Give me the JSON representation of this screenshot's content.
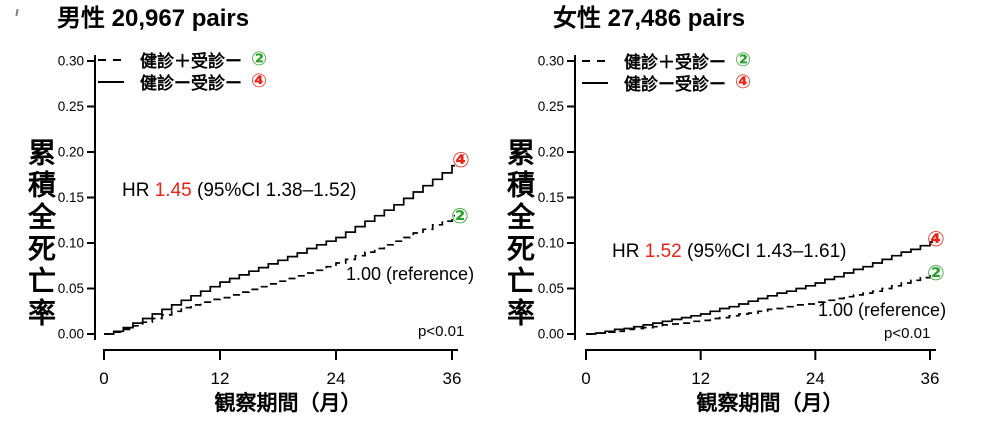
{
  "colors": {
    "red": "#e8231a",
    "green": "#2fa12f",
    "curve": "#000000"
  },
  "panels": [
    {
      "title": "男性 20,967 pairs",
      "ylabel": "累積全死亡率",
      "xlabel": "観察期間（月）",
      "legend": {
        "items": [
          {
            "label": "健診＋受診ー",
            "symbol": "②"
          },
          {
            "label": "健診ー受診ー",
            "symbol": "④"
          }
        ]
      },
      "hr": {
        "prefix": "HR ",
        "value": "1.45",
        "ci": " (95%CI 1.38–1.52)"
      },
      "reference": "1.00 (reference)",
      "p_value": "p<0.01",
      "markers": {
        "solid_end": "④",
        "dashed_end": "②"
      }
    },
    {
      "title": "女性 27,486 pairs",
      "ylabel": "累積全死亡率",
      "xlabel": "観察期間（月）",
      "legend": {
        "items": [
          {
            "label": "健診＋受診ー",
            "symbol": "②"
          },
          {
            "label": "健診ー受診ー",
            "symbol": "④"
          }
        ]
      },
      "hr": {
        "prefix": "HR ",
        "value": "1.52",
        "ci": " (95%CI 1.43–1.61)"
      },
      "reference": "1.00 (reference)",
      "p_value": "p<0.01",
      "markers": {
        "solid_end": "④",
        "dashed_end": "②"
      }
    }
  ],
  "chart_data": [
    {
      "type": "line",
      "step": true,
      "title": "男性 20,967 pairs",
      "xlabel": "観察期間（月）",
      "ylabel": "累積全死亡率",
      "xlim": [
        0,
        36
      ],
      "ylim": [
        0,
        0.3
      ],
      "xticks": [
        0,
        12,
        24,
        36
      ],
      "yticks": [
        0,
        0.05,
        0.1,
        0.15,
        0.2,
        0.25,
        0.3
      ],
      "x": [
        0,
        1,
        2,
        3,
        4,
        5,
        6,
        7,
        8,
        9,
        10,
        11,
        12,
        13,
        14,
        15,
        16,
        17,
        18,
        19,
        20,
        21,
        22,
        23,
        24,
        25,
        26,
        27,
        28,
        29,
        30,
        31,
        32,
        33,
        34,
        35,
        36
      ],
      "series": [
        {
          "name": "健診＋受診ー ②",
          "style": "dashed",
          "color": "#000000",
          "end_label": "②",
          "values": [
            0,
            0.002,
            0.005,
            0.009,
            0.013,
            0.017,
            0.021,
            0.025,
            0.029,
            0.032,
            0.035,
            0.038,
            0.04,
            0.043,
            0.046,
            0.049,
            0.052,
            0.055,
            0.058,
            0.061,
            0.064,
            0.067,
            0.07,
            0.074,
            0.078,
            0.082,
            0.086,
            0.09,
            0.094,
            0.098,
            0.102,
            0.106,
            0.111,
            0.115,
            0.12,
            0.124,
            0.13
          ]
        },
        {
          "name": "健診ー受診ー ④",
          "style": "solid",
          "color": "#000000",
          "end_label": "④",
          "values": [
            0,
            0.003,
            0.007,
            0.012,
            0.017,
            0.022,
            0.027,
            0.032,
            0.037,
            0.042,
            0.047,
            0.052,
            0.057,
            0.061,
            0.065,
            0.069,
            0.073,
            0.077,
            0.081,
            0.085,
            0.089,
            0.094,
            0.098,
            0.102,
            0.106,
            0.112,
            0.118,
            0.124,
            0.13,
            0.136,
            0.142,
            0.149,
            0.156,
            0.163,
            0.17,
            0.177,
            0.185
          ]
        }
      ],
      "annotations": {
        "hr": "HR 1.45 (95%CI 1.38–1.52)",
        "reference": "1.00 (reference)",
        "p": "p<0.01"
      },
      "legend_position": "top-left",
      "grid": false
    },
    {
      "type": "line",
      "step": true,
      "title": "女性 27,486 pairs",
      "xlabel": "観察期間（月）",
      "ylabel": "累積全死亡率",
      "xlim": [
        0,
        36
      ],
      "ylim": [
        0,
        0.3
      ],
      "xticks": [
        0,
        12,
        24,
        36
      ],
      "yticks": [
        0,
        0.05,
        0.1,
        0.15,
        0.2,
        0.25,
        0.3
      ],
      "x": [
        0,
        1,
        2,
        3,
        4,
        5,
        6,
        7,
        8,
        9,
        10,
        11,
        12,
        13,
        14,
        15,
        16,
        17,
        18,
        19,
        20,
        21,
        22,
        23,
        24,
        25,
        26,
        27,
        28,
        29,
        30,
        31,
        32,
        33,
        34,
        35,
        36
      ],
      "series": [
        {
          "name": "健診＋受診ー ②",
          "style": "dashed",
          "color": "#000000",
          "end_label": "②",
          "values": [
            0,
            0.001,
            0.002,
            0.003,
            0.005,
            0.006,
            0.007,
            0.008,
            0.01,
            0.011,
            0.012,
            0.014,
            0.015,
            0.017,
            0.018,
            0.02,
            0.022,
            0.023,
            0.025,
            0.027,
            0.028,
            0.03,
            0.032,
            0.033,
            0.035,
            0.037,
            0.039,
            0.041,
            0.043,
            0.045,
            0.047,
            0.05,
            0.053,
            0.056,
            0.059,
            0.062,
            0.066
          ]
        },
        {
          "name": "健診ー受診ー ④",
          "style": "solid",
          "color": "#000000",
          "end_label": "④",
          "values": [
            0,
            0.001,
            0.003,
            0.005,
            0.006,
            0.008,
            0.01,
            0.012,
            0.014,
            0.016,
            0.018,
            0.02,
            0.022,
            0.025,
            0.028,
            0.03,
            0.033,
            0.036,
            0.039,
            0.042,
            0.045,
            0.047,
            0.05,
            0.053,
            0.056,
            0.06,
            0.063,
            0.067,
            0.071,
            0.074,
            0.078,
            0.082,
            0.086,
            0.09,
            0.093,
            0.097,
            0.101
          ]
        }
      ],
      "annotations": {
        "hr": "HR 1.52 (95%CI 1.43–1.61)",
        "reference": "1.00 (reference)",
        "p": "p<0.01"
      },
      "legend_position": "top-left",
      "grid": false
    }
  ]
}
